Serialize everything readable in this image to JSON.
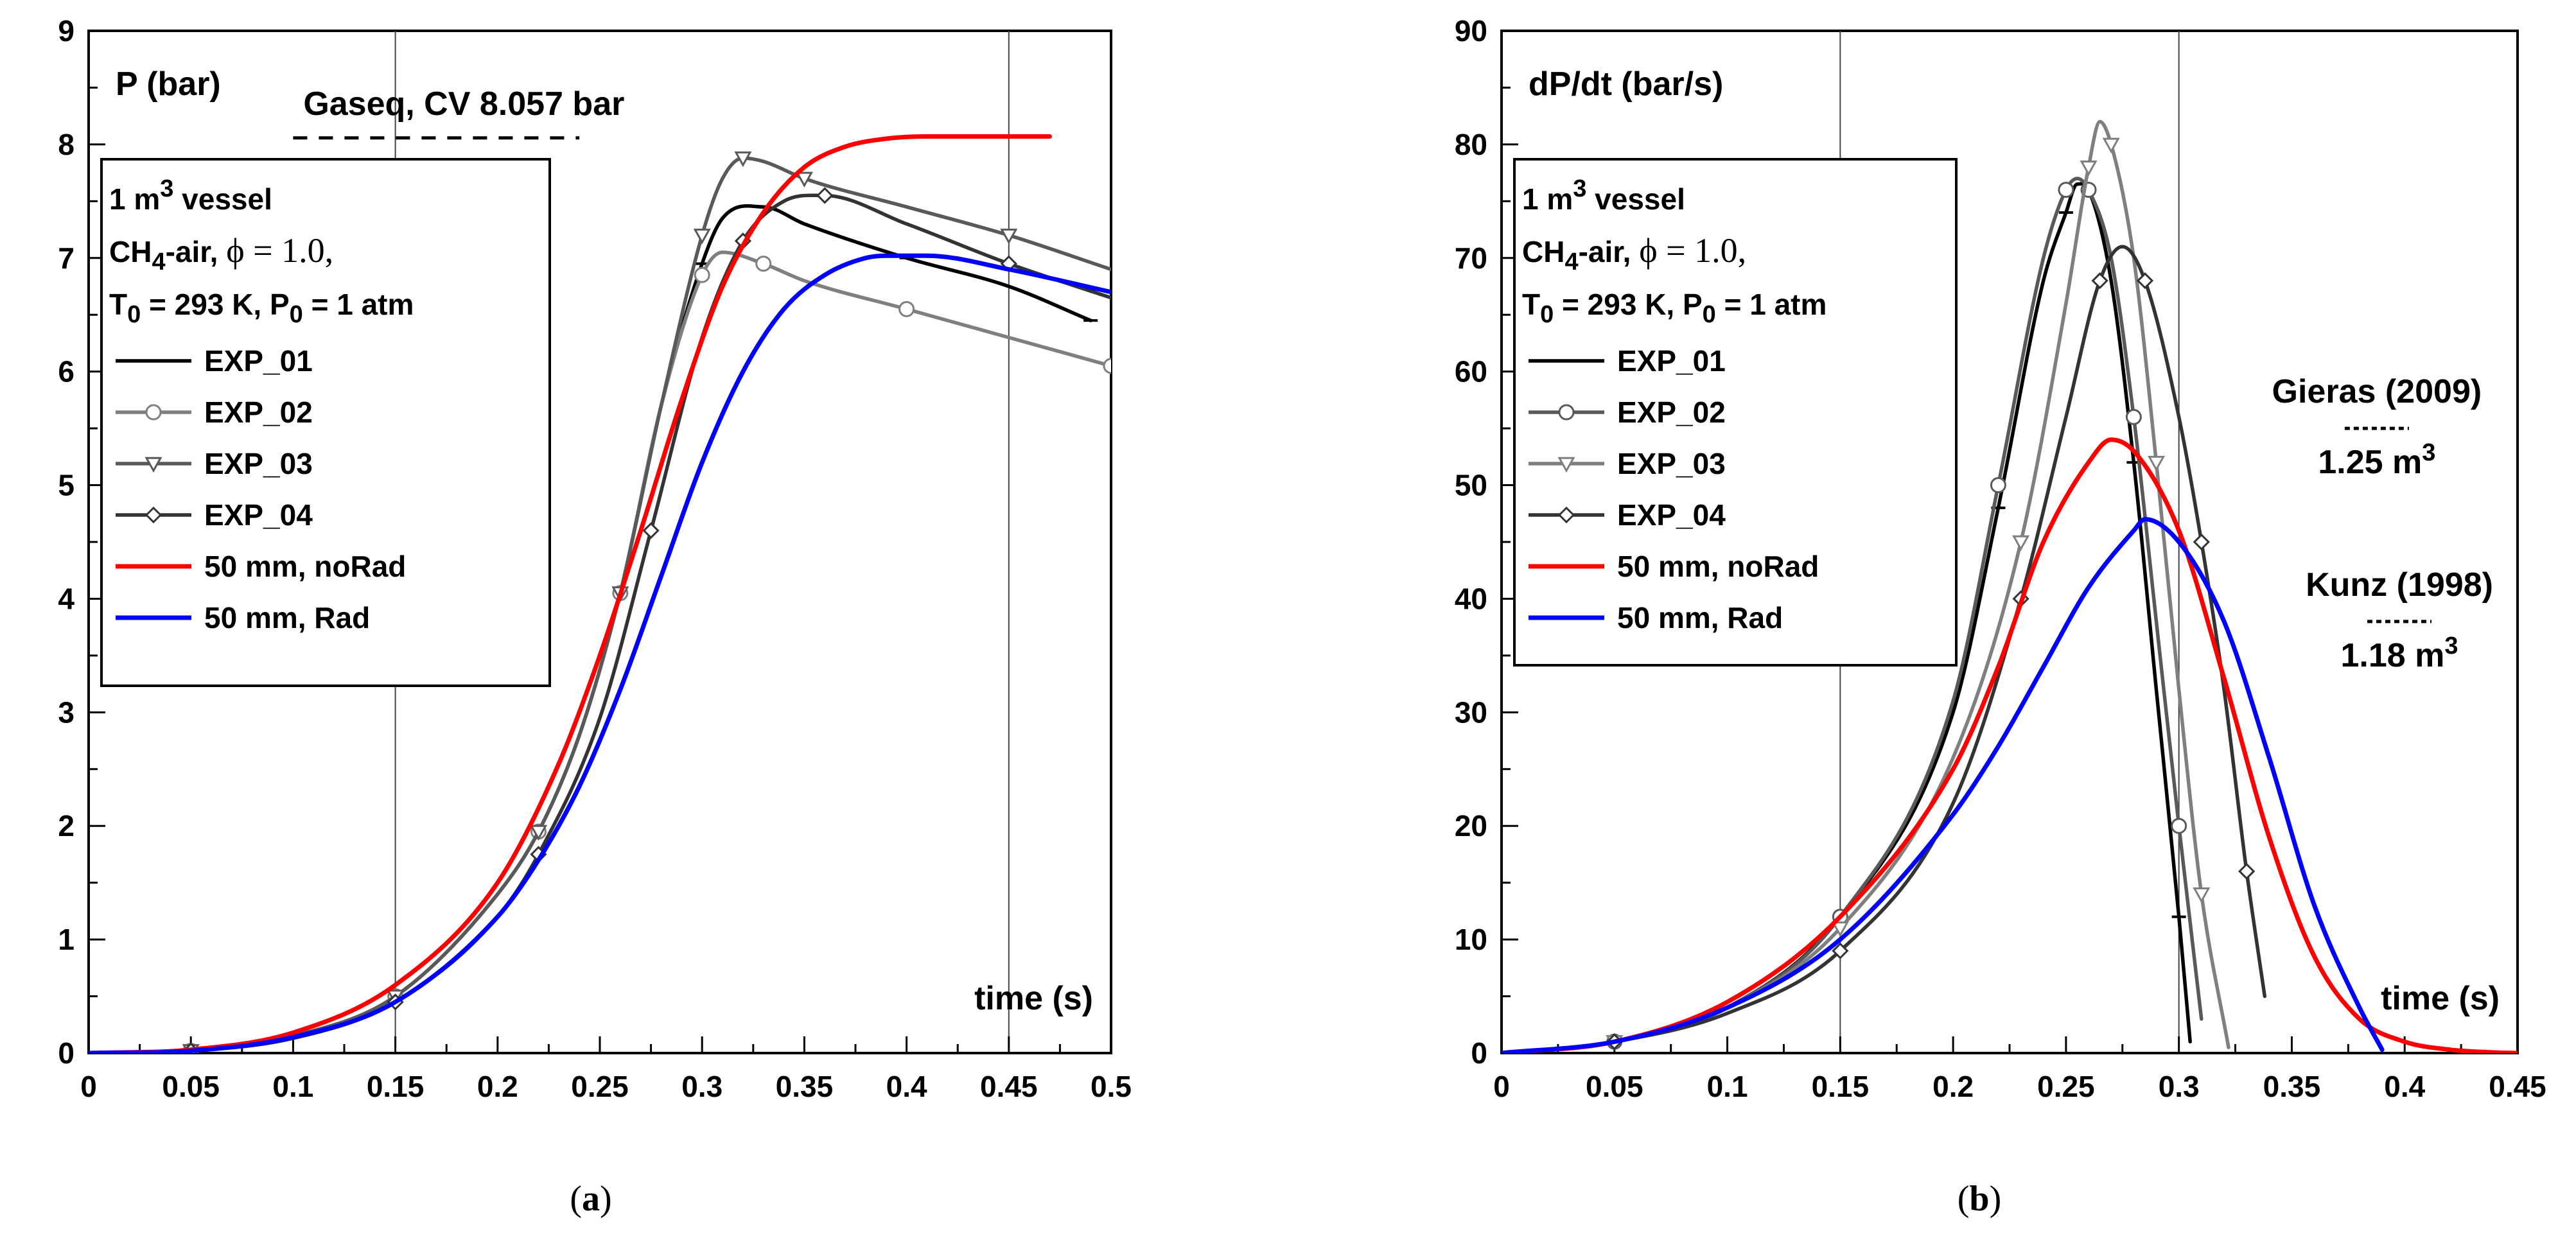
{
  "chart_data": [
    {
      "type": "line",
      "panel": "a",
      "caption_letter": "a",
      "ylabel": "P (bar)",
      "xlabel": "time (s)",
      "xlim": [
        0,
        0.5
      ],
      "ylim": [
        0,
        9
      ],
      "xticks": [
        "0",
        "0.05",
        "0.1",
        "0.15",
        "0.2",
        "0.25",
        "0.3",
        "0.35",
        "0.4",
        "0.45",
        "0.5"
      ],
      "yticks": [
        "0",
        "1",
        "2",
        "3",
        "4",
        "5",
        "6",
        "7",
        "8",
        "9"
      ],
      "gridlines_x": [
        0.15,
        0.45
      ],
      "reference": {
        "label": "Gaseq, CV 8.057 bar",
        "value": 8.057,
        "x_range": [
          0.1,
          0.24
        ]
      },
      "legend": {
        "placement": "upper-left",
        "lines": [
          {
            "parts": [
              {
                "t": "1 m"
              },
              {
                "t": "3",
                "sup": true
              },
              {
                "t": " vessel"
              }
            ]
          },
          {
            "parts": [
              {
                "t": "CH"
              },
              {
                "t": "4",
                "sub": true
              },
              {
                "t": "-air, "
              },
              {
                "t": "ϕ = 1.0,",
                "font": "serif"
              }
            ]
          },
          {
            "parts": [
              {
                "t": "T"
              },
              {
                "t": "0",
                "sub": true
              },
              {
                "t": " = 293 K, P"
              },
              {
                "t": "0",
                "sub": true
              },
              {
                "t": " = 1 atm"
              }
            ]
          }
        ]
      },
      "series": [
        {
          "name": "EXP_01",
          "color": "#000000",
          "marker": "dash",
          "x": [
            0,
            0.05,
            0.1,
            0.15,
            0.2,
            0.22,
            0.24,
            0.26,
            0.28,
            0.3,
            0.31,
            0.33,
            0.35,
            0.4,
            0.45,
            0.49
          ],
          "y": [
            0,
            0.02,
            0.15,
            0.5,
            1.4,
            1.95,
            2.8,
            4.05,
            5.7,
            6.95,
            7.35,
            7.45,
            7.3,
            7.0,
            6.75,
            6.45
          ]
        },
        {
          "name": "EXP_02",
          "color": "#7f7f7f",
          "marker": "circle",
          "x": [
            0,
            0.05,
            0.1,
            0.15,
            0.2,
            0.22,
            0.24,
            0.26,
            0.28,
            0.3,
            0.31,
            0.33,
            0.35,
            0.4,
            0.45,
            0.5
          ],
          "y": [
            0,
            0.02,
            0.15,
            0.5,
            1.4,
            1.95,
            2.8,
            4.05,
            5.7,
            6.85,
            7.05,
            6.95,
            6.8,
            6.55,
            6.3,
            6.05
          ]
        },
        {
          "name": "EXP_03",
          "color": "#595959",
          "marker": "triangle-down",
          "x": [
            0,
            0.05,
            0.1,
            0.15,
            0.2,
            0.22,
            0.24,
            0.26,
            0.28,
            0.3,
            0.31,
            0.32,
            0.33,
            0.35,
            0.4,
            0.45,
            0.5
          ],
          "y": [
            0,
            0.02,
            0.15,
            0.5,
            1.4,
            1.95,
            2.8,
            4.05,
            5.7,
            7.2,
            7.7,
            7.88,
            7.85,
            7.7,
            7.45,
            7.2,
            6.9
          ]
        },
        {
          "name": "EXP_04",
          "color": "#333333",
          "marker": "diamond",
          "x": [
            0,
            0.05,
            0.1,
            0.15,
            0.2,
            0.22,
            0.25,
            0.275,
            0.3,
            0.32,
            0.34,
            0.36,
            0.4,
            0.45,
            0.5
          ],
          "y": [
            0,
            0.02,
            0.13,
            0.45,
            1.2,
            1.75,
            2.95,
            4.6,
            6.3,
            7.15,
            7.5,
            7.55,
            7.3,
            6.95,
            6.65
          ]
        },
        {
          "name": "50 mm, noRad",
          "color": "#ff0000",
          "marker": "none",
          "x": [
            0,
            0.05,
            0.1,
            0.15,
            0.2,
            0.23,
            0.25,
            0.27,
            0.29,
            0.31,
            0.33,
            0.35,
            0.37,
            0.39,
            0.41,
            0.43,
            0.45,
            0.47
          ],
          "y": [
            0,
            0.03,
            0.18,
            0.6,
            1.5,
            2.55,
            3.5,
            4.6,
            5.75,
            6.75,
            7.4,
            7.8,
            7.98,
            8.05,
            8.07,
            8.07,
            8.07,
            8.07
          ]
        },
        {
          "name": "50 mm, Rad",
          "color": "#0000ff",
          "marker": "none",
          "x": [
            0,
            0.05,
            0.1,
            0.15,
            0.2,
            0.22,
            0.24,
            0.26,
            0.28,
            0.3,
            0.32,
            0.34,
            0.36,
            0.38,
            0.39,
            0.41,
            0.45,
            0.5
          ],
          "y": [
            0,
            0.02,
            0.14,
            0.45,
            1.2,
            1.7,
            2.35,
            3.2,
            4.2,
            5.2,
            6.0,
            6.55,
            6.85,
            7.0,
            7.02,
            7.02,
            6.9,
            6.7
          ]
        }
      ]
    },
    {
      "type": "line",
      "panel": "b",
      "caption_letter": "b",
      "ylabel": "dP/dt (bar/s)",
      "xlabel": "time (s)",
      "xlim": [
        0,
        0.45
      ],
      "ylim": [
        0,
        90
      ],
      "xticks": [
        "0",
        "0.05",
        "0.1",
        "0.15",
        "0.2",
        "0.25",
        "0.3",
        "0.35",
        "0.4",
        "0.45"
      ],
      "yticks": [
        "0",
        "10",
        "20",
        "30",
        "40",
        "50",
        "60",
        "70",
        "80",
        "90"
      ],
      "gridlines_x": [
        0.15,
        0.3
      ],
      "annotations": [
        {
          "label": "Gieras (2009)",
          "volume": "1.25 m",
          "volume_exp": "3",
          "x": 0.345,
          "y": 55
        },
        {
          "label": "Kunz (1998)",
          "volume": "1.18 m",
          "volume_exp": "3",
          "x": 0.355,
          "y": 38
        }
      ],
      "legend": {
        "placement": "upper-left",
        "lines": [
          {
            "parts": [
              {
                "t": "1 m"
              },
              {
                "t": "3",
                "sup": true
              },
              {
                "t": " vessel"
              }
            ]
          },
          {
            "parts": [
              {
                "t": "CH"
              },
              {
                "t": "4",
                "sub": true
              },
              {
                "t": "-air, "
              },
              {
                "t": "ϕ = 1.0,",
                "font": "serif"
              }
            ]
          },
          {
            "parts": [
              {
                "t": "T"
              },
              {
                "t": "0",
                "sub": true
              },
              {
                "t": " = 293 K, P"
              },
              {
                "t": "0",
                "sub": true
              },
              {
                "t": " = 1 atm"
              }
            ]
          }
        ]
      },
      "series": [
        {
          "name": "EXP_01",
          "color": "#000000",
          "marker": "dash",
          "x": [
            0,
            0.05,
            0.1,
            0.15,
            0.2,
            0.22,
            0.24,
            0.25,
            0.255,
            0.26,
            0.27,
            0.28,
            0.29,
            0.3,
            0.305
          ],
          "y": [
            0,
            1,
            4,
            12,
            30,
            48,
            68,
            74,
            76.5,
            76,
            68,
            52,
            32,
            12,
            1
          ]
        },
        {
          "name": "EXP_02",
          "color": "#595959",
          "marker": "circle",
          "x": [
            0,
            0.05,
            0.1,
            0.15,
            0.2,
            0.22,
            0.24,
            0.25,
            0.255,
            0.26,
            0.27,
            0.28,
            0.29,
            0.3,
            0.31
          ],
          "y": [
            0,
            1,
            4,
            12,
            31,
            50,
            70,
            76,
            77,
            76,
            70,
            56,
            38,
            20,
            3
          ]
        },
        {
          "name": "EXP_03",
          "color": "#7f7f7f",
          "marker": "triangle-down",
          "x": [
            0,
            0.05,
            0.1,
            0.15,
            0.2,
            0.23,
            0.25,
            0.26,
            0.265,
            0.27,
            0.28,
            0.29,
            0.3,
            0.31,
            0.322
          ],
          "y": [
            0,
            1,
            4,
            11,
            26,
            45,
            66,
            78,
            82,
            80,
            70,
            52,
            32,
            14,
            0.5
          ]
        },
        {
          "name": "EXP_04",
          "color": "#333333",
          "marker": "diamond",
          "x": [
            0,
            0.05,
            0.1,
            0.15,
            0.2,
            0.23,
            0.25,
            0.265,
            0.275,
            0.285,
            0.3,
            0.31,
            0.32,
            0.33,
            0.338
          ],
          "y": [
            0,
            1,
            3.5,
            9,
            22,
            40,
            56,
            68,
            71,
            68,
            56,
            45,
            32,
            16,
            5
          ]
        },
        {
          "name": "50 mm, noRad",
          "color": "#ff0000",
          "marker": "none",
          "x": [
            0,
            0.05,
            0.1,
            0.15,
            0.2,
            0.22,
            0.24,
            0.26,
            0.27,
            0.28,
            0.3,
            0.32,
            0.34,
            0.36,
            0.38,
            0.4,
            0.42,
            0.44,
            0.45
          ],
          "y": [
            0,
            1,
            4.5,
            12,
            25,
            34,
            45,
            52,
            54,
            53,
            46,
            33,
            19,
            8.5,
            3,
            1,
            0.3,
            0.05,
            0
          ]
        },
        {
          "name": "50 mm, Rad",
          "color": "#0000ff",
          "marker": "none",
          "x": [
            0,
            0.05,
            0.1,
            0.15,
            0.2,
            0.22,
            0.24,
            0.26,
            0.28,
            0.285,
            0.3,
            0.32,
            0.34,
            0.36,
            0.38,
            0.39
          ],
          "y": [
            0,
            1,
            4,
            10,
            21,
            27,
            34,
            41,
            46,
            47,
            45,
            38,
            26,
            13,
            4,
            0.3
          ]
        }
      ]
    }
  ]
}
